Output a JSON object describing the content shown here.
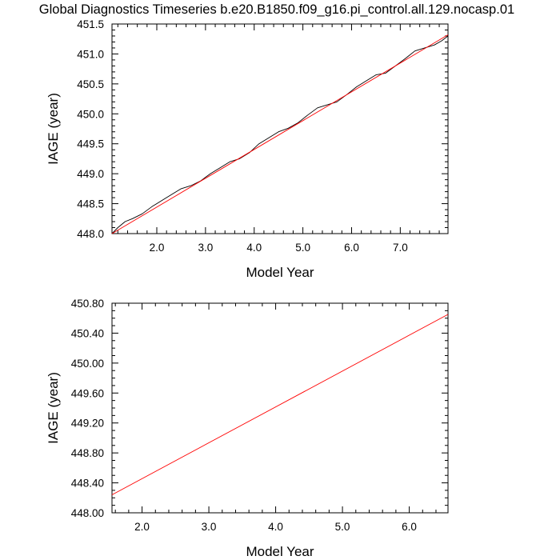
{
  "title": "Global Diagnostics Timeseries b.e20.B1850.f09_g16.pi_control.all.129.nocasp.01",
  "chart_data": [
    {
      "type": "line",
      "xlabel": "Model Year",
      "ylabel": "IAGE (year)",
      "xlim": [
        1.08,
        7.98
      ],
      "ylim": [
        448.0,
        451.5
      ],
      "xticks": [
        2.0,
        3.0,
        4.0,
        5.0,
        6.0,
        7.0
      ],
      "xtick_labels": [
        "2.0",
        "3.0",
        "4.0",
        "5.0",
        "6.0",
        "7.0"
      ],
      "yticks": [
        448.0,
        448.5,
        449.0,
        449.5,
        450.0,
        450.5,
        451.0,
        451.5
      ],
      "ytick_labels": [
        "448.0",
        "448.5",
        "449.0",
        "449.5",
        "450.0",
        "450.5",
        "451.0",
        "451.5"
      ],
      "grid": false,
      "series": [
        {
          "color": "#000000",
          "x": [
            1.08,
            1.2,
            1.35,
            1.5,
            1.7,
            1.9,
            2.1,
            2.3,
            2.5,
            2.7,
            2.9,
            3.1,
            3.3,
            3.5,
            3.7,
            3.9,
            4.1,
            4.3,
            4.5,
            4.7,
            4.9,
            5.1,
            5.3,
            5.5,
            5.7,
            5.9,
            6.1,
            6.3,
            6.5,
            6.7,
            6.9,
            7.1,
            7.3,
            7.5,
            7.7,
            7.85,
            7.98
          ],
          "y": [
            448.0,
            448.1,
            448.2,
            448.25,
            448.33,
            448.45,
            448.55,
            448.65,
            448.75,
            448.8,
            448.88,
            449.0,
            449.1,
            449.2,
            449.25,
            449.35,
            449.5,
            449.6,
            449.7,
            449.76,
            449.85,
            449.98,
            450.1,
            450.15,
            450.2,
            450.32,
            450.45,
            450.55,
            450.65,
            450.68,
            450.8,
            450.92,
            451.05,
            451.1,
            451.15,
            451.22,
            451.3
          ]
        },
        {
          "color": "#ff0000",
          "x": [
            1.08,
            7.98
          ],
          "y": [
            448.0,
            451.32
          ]
        }
      ]
    },
    {
      "type": "line",
      "xlabel": "Model Year",
      "ylabel": "IAGE (year)",
      "xlim": [
        1.55,
        6.58
      ],
      "ylim": [
        448.0,
        450.8
      ],
      "xticks": [
        2.0,
        3.0,
        4.0,
        5.0,
        6.0
      ],
      "xtick_labels": [
        "2.0",
        "3.0",
        "4.0",
        "5.0",
        "6.0"
      ],
      "yticks": [
        448.0,
        448.4,
        448.8,
        449.2,
        449.6,
        450.0,
        450.4,
        450.8
      ],
      "ytick_labels": [
        "448.00",
        "448.40",
        "448.80",
        "449.20",
        "449.60",
        "450.00",
        "450.40",
        "450.80"
      ],
      "grid": false,
      "series": [
        {
          "color": "#ff0000",
          "x": [
            1.55,
            6.58
          ],
          "y": [
            448.24,
            450.65
          ]
        }
      ]
    }
  ]
}
